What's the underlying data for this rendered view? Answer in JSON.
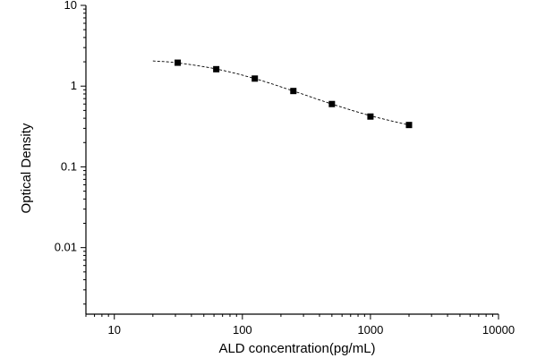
{
  "chart_data": {
    "type": "scatter",
    "title": "",
    "xlabel": "ALD concentration(pg/mL)",
    "ylabel": "Optical Density",
    "x_scale": "log",
    "y_scale": "log",
    "xlim": [
      6,
      10000
    ],
    "ylim": [
      0.0015,
      10
    ],
    "x_ticks": [
      10,
      100,
      1000,
      10000
    ],
    "x_tick_labels": [
      "10",
      "100",
      "1000",
      "10000"
    ],
    "y_ticks": [
      0.01,
      0.1,
      1,
      10
    ],
    "y_tick_labels": [
      "0.01",
      "0.1",
      "1",
      "10"
    ],
    "grid": false,
    "legend": "none",
    "points": {
      "x": [
        31.25,
        62.5,
        125,
        250,
        500,
        1000,
        2000
      ],
      "y": [
        1.95,
        1.62,
        1.24,
        0.87,
        0.6,
        0.42,
        0.33
      ]
    },
    "fit_curve": {
      "style": "dashed",
      "x": [
        20,
        31.25,
        62.5,
        125,
        250,
        500,
        1000,
        2000
      ],
      "y": [
        2.05,
        1.94,
        1.63,
        1.24,
        0.87,
        0.6,
        0.43,
        0.33
      ]
    },
    "colors": {
      "marker": "#000000",
      "axis": "#000000",
      "curve": "#000000"
    }
  }
}
